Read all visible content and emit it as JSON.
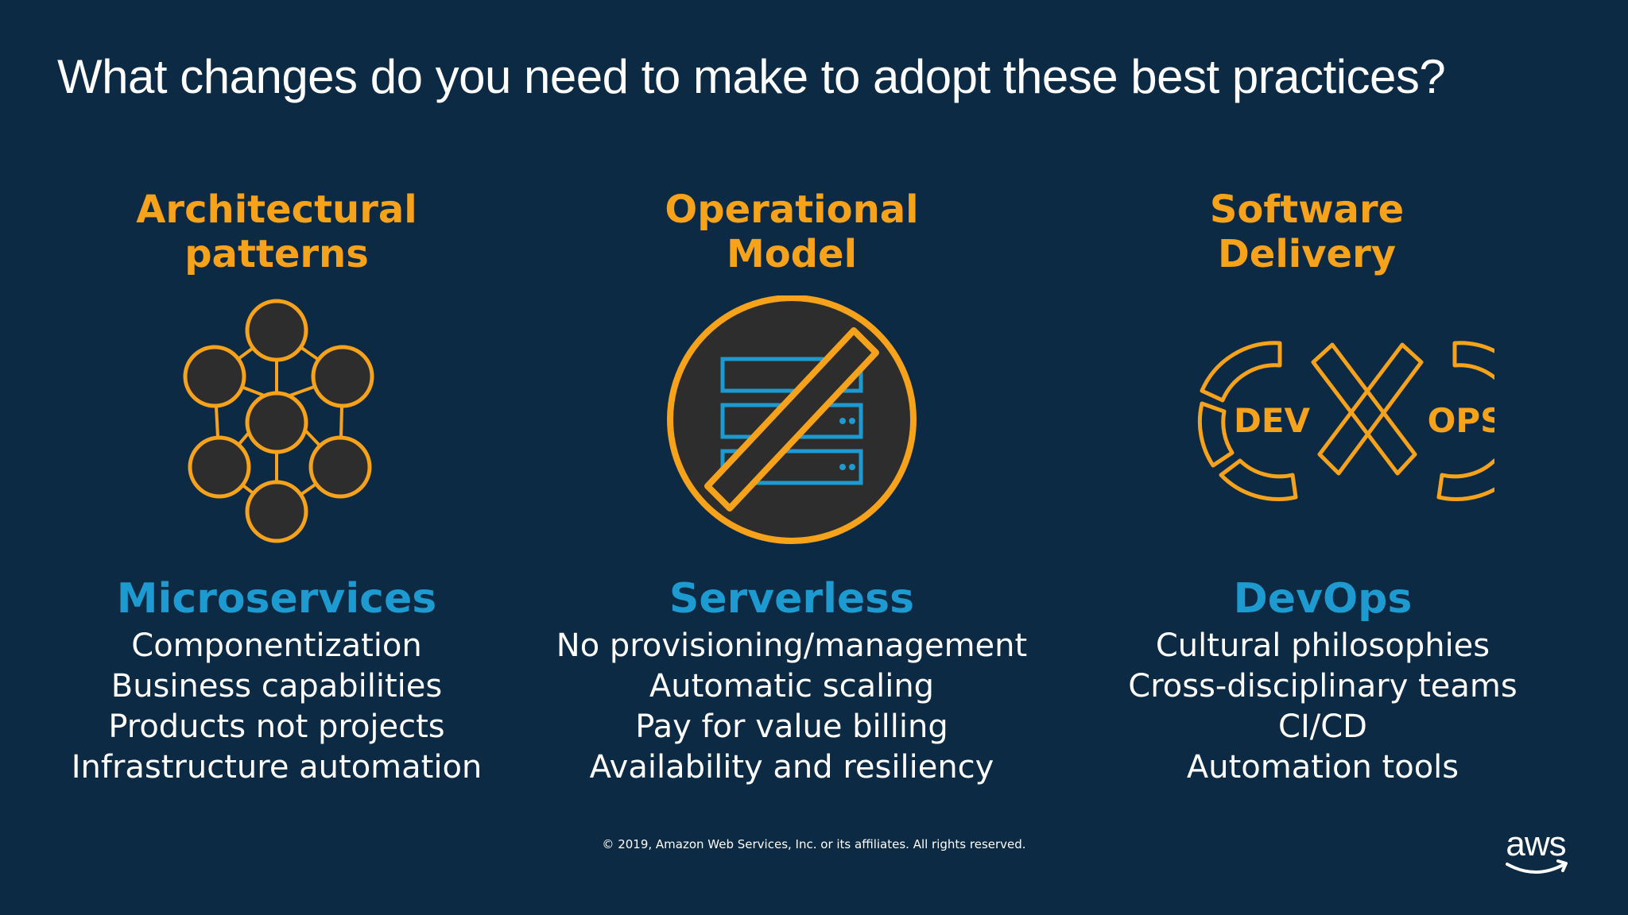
{
  "slide": {
    "title": "What changes do you need to make to adopt these best practices?",
    "footer": "© 2019, Amazon Web Services, Inc. or its affiliates. All rights reserved.",
    "logo_text": "aws"
  },
  "colors": {
    "background": "#0c2a43",
    "accent_orange": "#f7a21b",
    "accent_blue": "#1d9bd1"
  },
  "columns": [
    {
      "heading": [
        "Architectural",
        "patterns"
      ],
      "icon": "microservices-network-icon",
      "concept": "Microservices",
      "items": [
        "Componentization",
        "Business capabilities",
        "Products not projects",
        "Infrastructure automation"
      ]
    },
    {
      "heading": [
        "Operational",
        "Model"
      ],
      "icon": "no-servers-icon",
      "concept": "Serverless",
      "items": [
        "No provisioning/management",
        "Automatic scaling",
        "Pay for value billing",
        "Availability and resiliency"
      ]
    },
    {
      "heading": [
        "Software",
        "Delivery"
      ],
      "icon": "devops-infinity-icon",
      "concept": "DevOps",
      "icon_labels": [
        "DEV",
        "OPS"
      ],
      "items": [
        "Cultural philosophies",
        "Cross-disciplinary teams",
        "CI/CD",
        "Automation tools"
      ]
    }
  ]
}
